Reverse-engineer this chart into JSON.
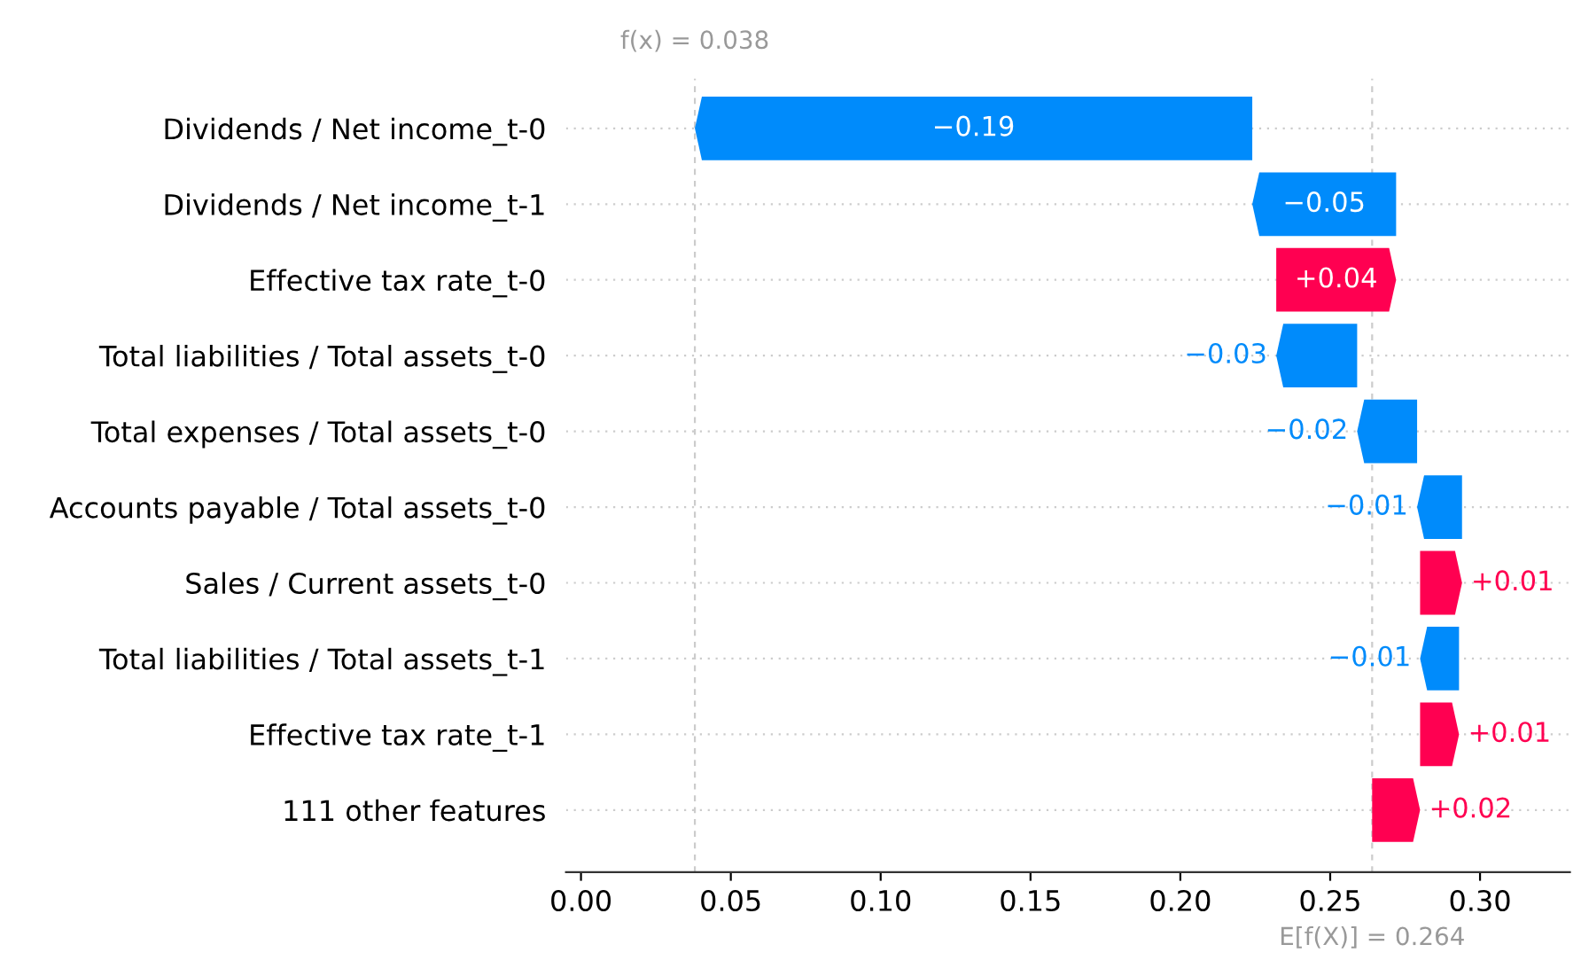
{
  "chart_data": {
    "type": "bar",
    "orientation": "horizontal",
    "categories": [
      "Dividends / Net income_t-0",
      "Dividends / Net income_t-1",
      "Effective tax rate_t-0",
      "Total liabilities / Total assets_t-0",
      "Total expenses / Total assets_t-0",
      "Accounts payable / Total assets_t-0",
      "Sales / Current assets_t-0",
      "Total liabilities / Total assets_t-1",
      "Effective tax rate_t-1",
      "111 other features"
    ],
    "base": [
      0.224,
      0.272,
      0.232,
      0.259,
      0.279,
      0.294,
      0.28,
      0.293,
      0.28,
      0.264
    ],
    "values": [
      -0.186,
      -0.048,
      0.04,
      -0.027,
      -0.02,
      -0.015,
      0.014,
      -0.013,
      0.013,
      0.016
    ],
    "value_labels": [
      "−0.19",
      "−0.05",
      "+0.04",
      "−0.03",
      "−0.02",
      "−0.01",
      "+0.01",
      "−0.01",
      "+0.01",
      "+0.02"
    ],
    "colors": [
      "#008bfb",
      "#008bfb",
      "#ff0051",
      "#008bfb",
      "#008bfb",
      "#008bfb",
      "#ff0051",
      "#008bfb",
      "#ff0051",
      "#ff0051"
    ],
    "xlim": [
      -0.005,
      0.33
    ],
    "xticks": [
      {
        "value": 0.0,
        "label": "0.00"
      },
      {
        "value": 0.05,
        "label": "0.05"
      },
      {
        "value": 0.1,
        "label": "0.10"
      },
      {
        "value": 0.15,
        "label": "0.15"
      },
      {
        "value": 0.2,
        "label": "0.20"
      },
      {
        "value": 0.25,
        "label": "0.25"
      },
      {
        "value": 0.3,
        "label": "0.30"
      }
    ],
    "ref_lines": [
      {
        "axis": "x",
        "value": 0.038,
        "label": "f(x) = 0.038",
        "color": "#cccccc",
        "line_style": "dashed"
      },
      {
        "axis": "x",
        "value": 0.264,
        "label": "E[f(X)] = 0.264",
        "color": "#cccccc",
        "line_style": "dashed"
      }
    ],
    "grid": "y",
    "legend": false
  }
}
